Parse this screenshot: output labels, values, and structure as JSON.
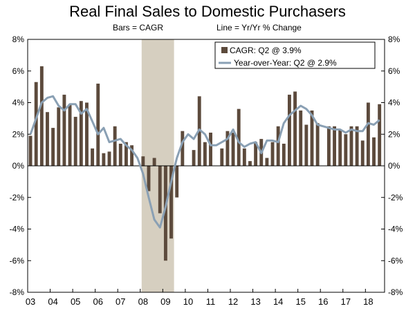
{
  "chart_data": {
    "type": "bar+line",
    "title": "Real Final Sales to Domestic Purchasers",
    "subtitle_left": "Bars = CAGR",
    "subtitle_right": "Line = Yr/Yr % Change",
    "ylim": [
      -8,
      8
    ],
    "y_ticks": [
      "-8%",
      "-6%",
      "-4%",
      "-2%",
      "0%",
      "2%",
      "4%",
      "6%",
      "8%"
    ],
    "x_ticks": [
      "03",
      "04",
      "05",
      "06",
      "07",
      "08",
      "09",
      "10",
      "11",
      "12",
      "13",
      "14",
      "15",
      "16",
      "17",
      "18"
    ],
    "start": "2003 Q1",
    "shaded_period": {
      "label": "recession",
      "from": "2008 Q1",
      "to": "2009 Q2"
    },
    "series": [
      {
        "name": "CAGR: Q2 @ 3.9%",
        "type": "bar",
        "color": "#5c4a3c",
        "values": [
          1.9,
          5.3,
          6.3,
          3.4,
          2.4,
          3.7,
          4.5,
          3.9,
          3.1,
          4.1,
          4.0,
          1.1,
          5.2,
          0.8,
          0.9,
          2.5,
          1.4,
          1.5,
          1.3,
          0.0,
          0.6,
          -1.6,
          0.5,
          -3.0,
          -6.0,
          -4.6,
          -2.0,
          2.2,
          0.0,
          1.0,
          4.4,
          1.5,
          2.1,
          0.0,
          1.1,
          2.2,
          2.1,
          3.6,
          1.1,
          0.3,
          1.5,
          1.7,
          0.5,
          1.5,
          2.5,
          1.4,
          4.5,
          4.7,
          3.5,
          2.6,
          3.5,
          2.7,
          0.0,
          2.5,
          2.5,
          2.3,
          2.0,
          2.5,
          2.5,
          1.6,
          4.0,
          1.8,
          3.9
        ]
      },
      {
        "name": "Year-over-Year: Q2 @ 2.9%",
        "type": "line",
        "color": "#8aa0b4",
        "values": [
          2.0,
          3.0,
          4.0,
          4.3,
          4.4,
          3.8,
          3.5,
          3.9,
          3.9,
          3.3,
          3.6,
          2.8,
          2.0,
          2.4,
          1.5,
          1.6,
          1.7,
          1.3,
          1.0,
          0.5,
          -0.5,
          -2.0,
          -3.4,
          -3.9,
          -2.6,
          -1.0,
          0.5,
          1.5,
          2.0,
          1.7,
          2.3,
          2.0,
          1.3,
          1.3,
          1.5,
          1.7,
          2.3,
          1.5,
          1.2,
          1.4,
          1.5,
          0.8,
          1.6,
          1.6,
          1.5,
          2.7,
          3.2,
          3.5,
          3.8,
          3.6,
          3.2,
          2.6,
          2.5,
          2.4,
          2.3,
          2.3,
          2.1,
          2.3,
          2.2,
          2.2,
          2.7,
          2.6,
          2.9
        ]
      }
    ]
  }
}
